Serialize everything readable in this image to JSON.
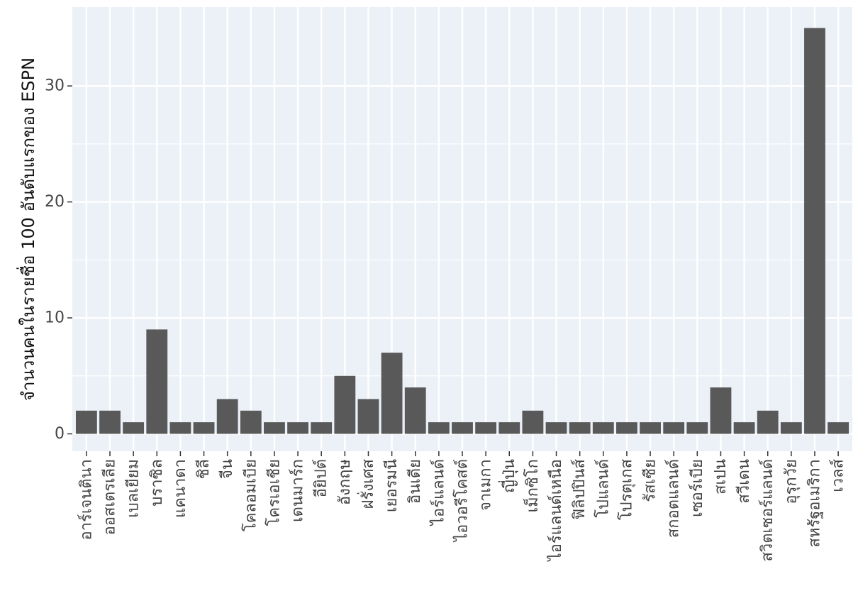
{
  "chart_data": {
    "type": "bar",
    "title": "",
    "xlabel": "",
    "ylabel": "จำนวนคนในรายชื่อ 100 อันดับแรกของ ESPN",
    "categories": [
      "อาร์เจนตินา",
      "ออสเตรเลีย",
      "เบลเยียม",
      "บราซิล",
      "แคนาดา",
      "ชิลี",
      "จีน",
      "โคลอมเบีย",
      "โครเอเชีย",
      "เดนมาร์ก",
      "อียิปต์",
      "อังกฤษ",
      "ฝรั่งเศส",
      "เยอรมนี",
      "อินเดีย",
      "ไอร์แลนด์",
      "ไอวอรีโคสต์",
      "จาเมกา",
      "ญี่ปุ่น",
      "เม็กซิโก",
      "ไอร์แลนด์เหนือ",
      "ฟิลิปปินส์",
      "โปแลนด์",
      "โปรตุเกส",
      "รัสเซีย",
      "สกอตแลนด์",
      "เซอร์เบีย",
      "สเปน",
      "สวีเดน",
      "สวิตเซอร์แลนด์",
      "อุรุกวัย",
      "สหรัฐอเมริกา",
      "เวลส์"
    ],
    "values": [
      2,
      2,
      1,
      9,
      1,
      1,
      3,
      2,
      1,
      1,
      1,
      5,
      3,
      7,
      4,
      1,
      1,
      1,
      1,
      2,
      1,
      1,
      1,
      1,
      1,
      1,
      1,
      4,
      1,
      2,
      1,
      35,
      1
    ],
    "ylim": [
      -1.5,
      36.8
    ],
    "yticks": [
      0,
      10,
      20,
      30
    ],
    "ytick_labels": [
      "0",
      "10",
      "20",
      "30"
    ],
    "grid": true,
    "legend": "none",
    "colors": {
      "bar": "#595959",
      "panel": "#EBF1F7",
      "grid": "#FFFFFF",
      "text": "#444444",
      "axis_title": "#111111"
    }
  }
}
